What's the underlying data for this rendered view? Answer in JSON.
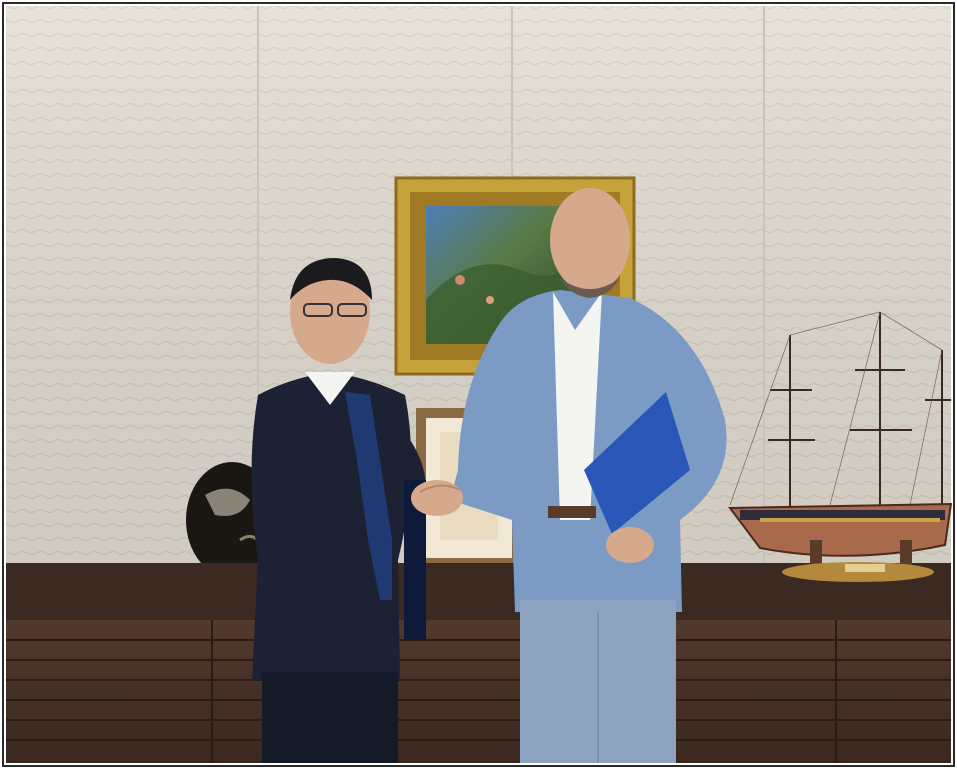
{
  "photo": {
    "subject": "two-men-handshake",
    "colors": {
      "wall": "#e3ddd3",
      "wall_shadow": "#cfc8bc",
      "cabinet": "#4a3428",
      "cabinet_dark": "#34241b",
      "frame_gold": "#c7a23b",
      "left_suit": "#1c2233",
      "right_suit": "#7b9bc4",
      "right_trousers": "#8ea3bf",
      "shirt": "#f4f4f2",
      "skin": "#d7a98c",
      "folder_blue": "#2a56b8",
      "ship_hull": "#a86a4a"
    }
  }
}
